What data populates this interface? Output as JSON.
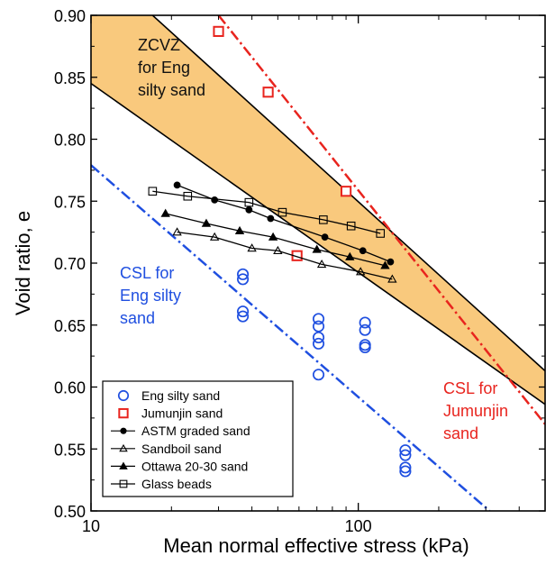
{
  "chart_data": {
    "type": "scatter",
    "xlabel": "Mean normal effective stress (kPa)",
    "ylabel": "Void ratio, e",
    "xscale": "log",
    "xlim": [
      10,
      500
    ],
    "ylim": [
      0.5,
      0.9
    ],
    "x_ticks": [
      10,
      100
    ],
    "x_tick_labels": [
      "10",
      "100"
    ],
    "y_ticks": [
      0.5,
      0.55,
      0.6,
      0.65,
      0.7,
      0.75,
      0.8,
      0.85,
      0.9
    ],
    "y_tick_labels": [
      "0.50",
      "0.55",
      "0.60",
      "0.65",
      "0.70",
      "0.75",
      "0.80",
      "0.85",
      "0.90"
    ],
    "grid": false,
    "legend_position": "bottom-left",
    "colors": {
      "zone_fill": "#f9c97d",
      "eng": "#1f4fe0",
      "jumunjin": "#e8241e",
      "black": "#000000"
    },
    "annotations": {
      "zcvz": [
        "ZCVZ",
        "for Eng",
        "silty sand"
      ],
      "csl_eng": [
        "CSL for",
        "Eng silty",
        "sand"
      ],
      "csl_jumunjin": [
        "CSL for",
        "Jumunjin",
        "sand"
      ]
    },
    "zone": {
      "upper_line": [
        [
          10,
          0.945
        ],
        [
          500,
          0.613
        ]
      ],
      "lower_line": [
        [
          10,
          0.845
        ],
        [
          500,
          0.586
        ]
      ]
    },
    "csl_lines": [
      {
        "label": "CSL for Eng silty sand",
        "points": [
          [
            10,
            0.779
          ],
          [
            310,
            0.5
          ]
        ],
        "color": "#1f4fe0"
      },
      {
        "label": "CSL for Jumunjin sand",
        "points": [
          [
            30,
            0.9
          ],
          [
            500,
            0.57
          ]
        ],
        "color": "#e8241e"
      }
    ],
    "series": [
      {
        "name": "Eng silty sand",
        "marker": "open-circle",
        "line": false,
        "color": "#1f4fe0",
        "x": [
          37,
          37,
          37,
          37,
          71,
          71,
          71,
          71,
          71,
          106,
          106,
          106,
          106,
          150,
          150,
          150,
          150
        ],
        "y": [
          0.691,
          0.687,
          0.661,
          0.657,
          0.655,
          0.649,
          0.64,
          0.635,
          0.61,
          0.652,
          0.646,
          0.634,
          0.632,
          0.549,
          0.545,
          0.535,
          0.532
        ]
      },
      {
        "name": "Jumunjin sand",
        "marker": "open-square",
        "line": false,
        "color": "#e8241e",
        "x": [
          30,
          46,
          59,
          90
        ],
        "y": [
          0.887,
          0.838,
          0.706,
          0.758
        ]
      },
      {
        "name": "ASTM graded sand",
        "marker": "filled-circle",
        "line": true,
        "color": "#000000",
        "x": [
          21,
          29,
          39,
          47,
          75,
          104,
          132
        ],
        "y": [
          0.763,
          0.751,
          0.743,
          0.736,
          0.721,
          0.71,
          0.701
        ]
      },
      {
        "name": "Sandboil sand",
        "marker": "open-triangle",
        "line": true,
        "color": "#000000",
        "x": [
          21,
          29,
          40,
          50,
          73,
          102,
          134
        ],
        "y": [
          0.725,
          0.721,
          0.712,
          0.71,
          0.699,
          0.693,
          0.687
        ]
      },
      {
        "name": "Ottawa 20-30 sand",
        "marker": "filled-triangle",
        "line": true,
        "color": "#000000",
        "x": [
          19,
          27,
          36,
          48,
          70,
          93,
          126
        ],
        "y": [
          0.74,
          0.732,
          0.726,
          0.721,
          0.711,
          0.705,
          0.698
        ]
      },
      {
        "name": "Glass beads",
        "marker": "open-square",
        "line": true,
        "color": "#000000",
        "x": [
          17,
          23,
          39,
          52,
          74,
          94,
          121
        ],
        "y": [
          0.758,
          0.754,
          0.749,
          0.741,
          0.735,
          0.73,
          0.724
        ]
      }
    ]
  }
}
